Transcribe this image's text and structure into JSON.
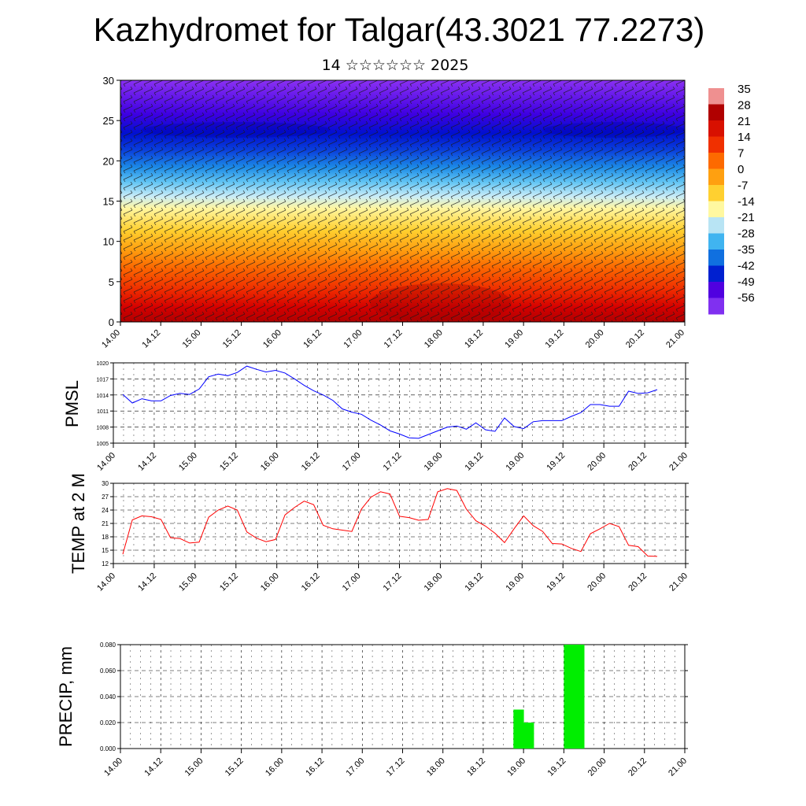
{
  "header": {
    "title": "Kazhydromet for Talgar(43.3021 77.2273)",
    "subtitle": "14 ☆☆☆☆☆☆ 2025"
  },
  "time_ticks": [
    "14.00",
    "14.12",
    "15.00",
    "15.12",
    "16.00",
    "16.12",
    "17.00",
    "17.12",
    "18.00",
    "18.12",
    "19.00",
    "19.12",
    "20.00",
    "20.12",
    "21.00"
  ],
  "colors": {
    "pmsl_line": "#0000ff",
    "temp_line": "#ff0000",
    "precip_bar": "#00ee00",
    "colorbar": [
      "#ef9090",
      "#b00000",
      "#d81000",
      "#f03000",
      "#fd6a00",
      "#ffa010",
      "#ffd030",
      "#fff8a0",
      "#b8e4f4",
      "#40b4f0",
      "#1070e0",
      "#0020d0",
      "#5000e0",
      "#8030f0"
    ]
  },
  "chart_data": [
    {
      "type": "heatmap",
      "title": "",
      "ylabel": "",
      "ylim": [
        0,
        30
      ],
      "yticks": [
        "0",
        "5",
        "10",
        "15",
        "20",
        "25",
        "30"
      ],
      "x_ticks": [
        "14.00",
        "14.12",
        "15.00",
        "15.12",
        "16.00",
        "16.12",
        "17.00",
        "17.12",
        "18.00",
        "18.12",
        "19.00",
        "19.12",
        "20.00",
        "20.12",
        "21.00"
      ],
      "colorbar_labels": [
        "35",
        "28",
        "21",
        "14",
        "7",
        "0",
        "-7",
        "-14",
        "-21",
        "-28",
        "-35",
        "-42",
        "-49",
        "-56"
      ],
      "overlay": "wind barbs"
    },
    {
      "type": "line",
      "ylabel": "PMSL",
      "ylim": [
        1005,
        1020
      ],
      "yticks": [
        "1005",
        "1008",
        "1011",
        "1014",
        "1017",
        "1020"
      ],
      "series": [
        {
          "values": [
            1014.1,
            1012.5,
            1013.3,
            1012.9,
            1012.9,
            1013.9,
            1014.3,
            1014.1,
            1015.1,
            1017.4,
            1017.9,
            1017.6,
            1018.2,
            1019.4,
            1018.8,
            1018.3,
            1018.6,
            1018.1,
            1017.0,
            1015.8,
            1014.8,
            1014.0,
            1013.0,
            1011.4,
            1010.8,
            1010.4,
            1009.3,
            1008.4,
            1007.3,
            1006.7,
            1006.0,
            1005.9,
            1006.6,
            1007.3,
            1008.0,
            1008.2,
            1007.6,
            1008.8,
            1007.5,
            1007.2,
            1009.7,
            1008.1,
            1007.7,
            1009.0,
            1009.2,
            1009.2,
            1009.2,
            1010.0,
            1010.7,
            1012.2,
            1012.2,
            1011.9,
            1011.9,
            1014.7,
            1014.3,
            1014.4,
            1015.0
          ]
        }
      ]
    },
    {
      "type": "line",
      "ylabel": "TEMP at 2 M",
      "ylim": [
        12,
        30
      ],
      "yticks": [
        "12",
        "15",
        "18",
        "21",
        "24",
        "27",
        "30"
      ],
      "series": [
        {
          "values": [
            14.1,
            21.8,
            22.7,
            22.5,
            21.9,
            17.8,
            17.6,
            16.6,
            16.8,
            22.4,
            24.0,
            24.9,
            24.0,
            19.1,
            17.7,
            16.9,
            17.4,
            22.9,
            24.6,
            26.0,
            25.2,
            20.6,
            19.8,
            19.5,
            19.2,
            24.2,
            26.9,
            28.1,
            27.6,
            22.6,
            22.3,
            21.7,
            21.9,
            28.1,
            28.8,
            28.4,
            24.2,
            21.6,
            20.4,
            18.8,
            16.7,
            19.8,
            22.7,
            20.5,
            19.2,
            16.5,
            16.4,
            15.4,
            14.7,
            18.7,
            19.8,
            21.0,
            20.3,
            16.1,
            15.8,
            13.7,
            13.6
          ]
        }
      ]
    },
    {
      "type": "bar",
      "ylabel": "PRECIP, mm",
      "ylim": [
        0,
        0.08
      ],
      "yticks": [
        "0.000",
        "0.020",
        "0.040",
        "0.060",
        "0.080"
      ],
      "bars": [
        {
          "x": 39,
          "value": 0.03
        },
        {
          "x": 40,
          "value": 0.02
        },
        {
          "x": 44,
          "value": 0.08
        },
        {
          "x": 45,
          "value": 0.08
        }
      ]
    }
  ]
}
